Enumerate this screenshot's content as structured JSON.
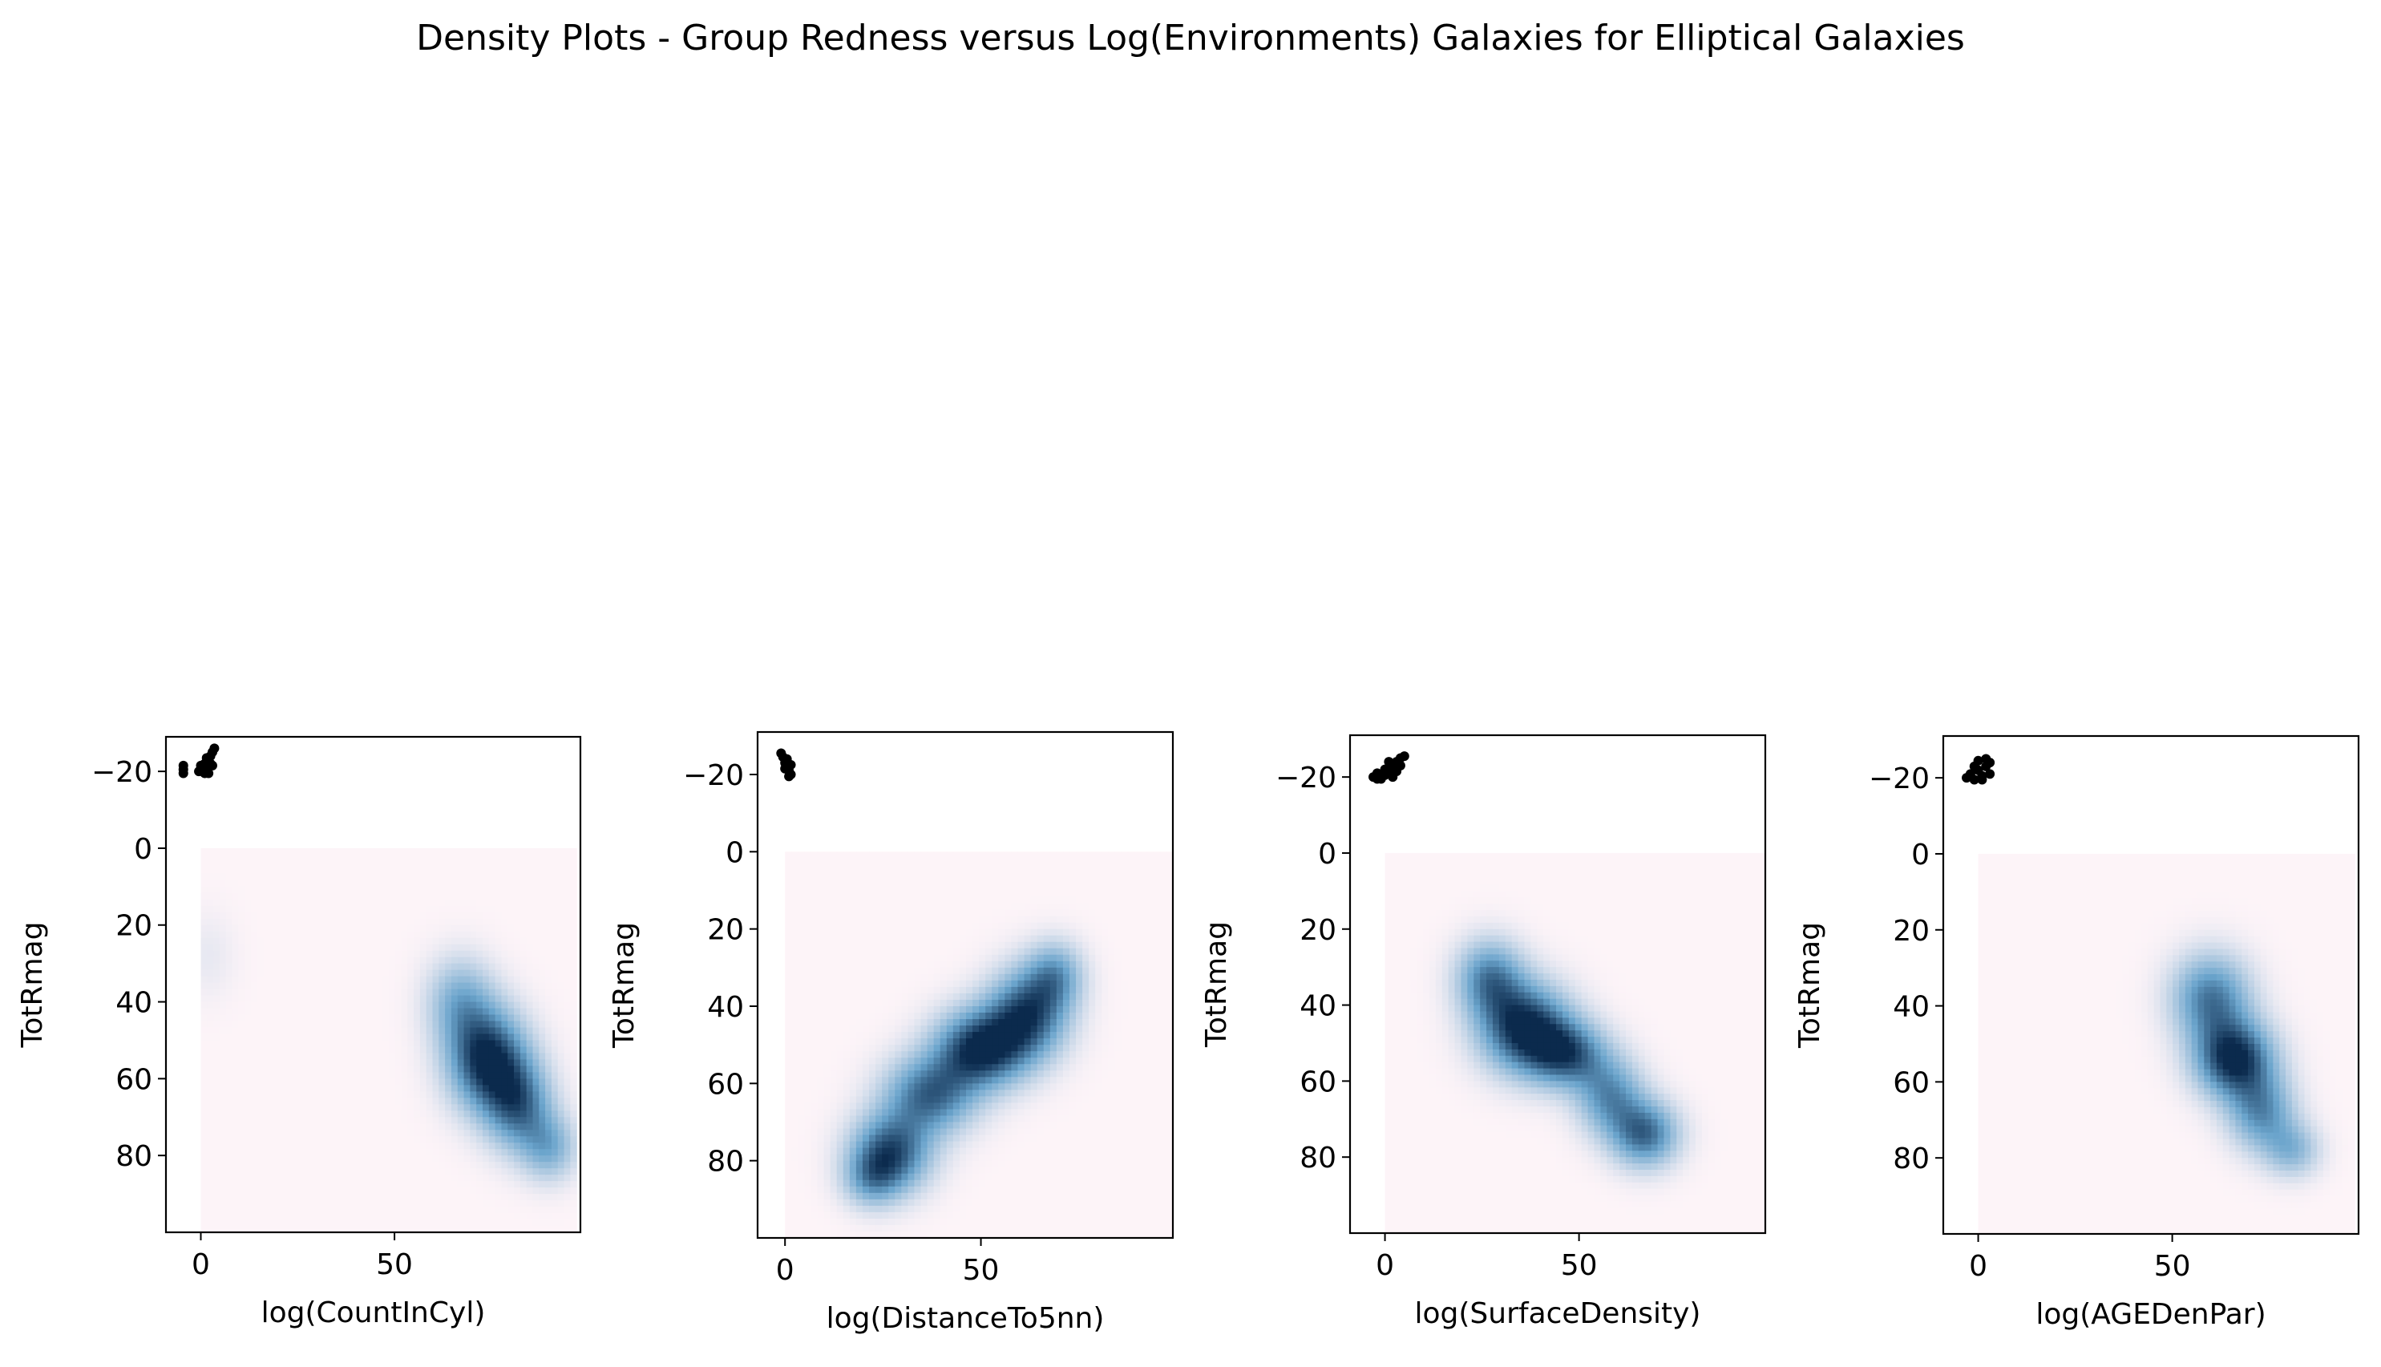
{
  "title": "Density Plots - Group Redness versus Log(Environments) Galaxies  for Elliptical Galaxies",
  "colors": {
    "density_low": "#fdf4f8",
    "density_mid": "#6aa4cc",
    "density_high": "#0b2a4d",
    "points": "#000000",
    "axes": "#000000"
  },
  "chart_data": [
    {
      "type": "heatmap",
      "xlabel": "log(CountInCyl)",
      "ylabel": "TotRmag",
      "xticks": [
        0,
        50
      ],
      "yticks": [
        -20,
        0,
        20,
        40,
        60,
        80
      ],
      "xlim": [
        -9,
        98
      ],
      "ylim": [
        100,
        -29
      ],
      "y_inverted": true,
      "density_extent": {
        "x": [
          0,
          97
        ],
        "y": [
          0,
          100
        ]
      },
      "density_blobs": [
        {
          "x": 67,
          "y": 40,
          "sx": 6,
          "sy": 8,
          "w": 0.45
        },
        {
          "x": 74,
          "y": 55,
          "sx": 7,
          "sy": 9,
          "w": 1.0
        },
        {
          "x": 82,
          "y": 67,
          "sx": 6,
          "sy": 8,
          "w": 0.7
        },
        {
          "x": 90,
          "y": 78,
          "sx": 5,
          "sy": 6,
          "w": 0.45
        },
        {
          "x": 2,
          "y": 28,
          "sx": 5,
          "sy": 8,
          "w": 0.08
        }
      ],
      "points": [
        {
          "x": -4.5,
          "y": -20.5
        },
        {
          "x": -4.5,
          "y": -21.5
        },
        {
          "x": -4.5,
          "y": -19.5
        },
        {
          "x": -0.5,
          "y": -20
        },
        {
          "x": 0.5,
          "y": -21
        },
        {
          "x": 1,
          "y": -22
        },
        {
          "x": 1.5,
          "y": -20.5
        },
        {
          "x": 2,
          "y": -23
        },
        {
          "x": 2.5,
          "y": -24
        },
        {
          "x": 3,
          "y": -21.5
        },
        {
          "x": 3,
          "y": -25
        },
        {
          "x": 3.5,
          "y": -26
        },
        {
          "x": 1,
          "y": -19.5
        },
        {
          "x": 2,
          "y": -19.5
        },
        {
          "x": 0,
          "y": -21.5
        },
        {
          "x": 2.5,
          "y": -22
        },
        {
          "x": 1.5,
          "y": -23.5
        }
      ]
    },
    {
      "type": "heatmap",
      "xlabel": "log(DistanceTo5nn)",
      "ylabel": "TotRmag",
      "xticks": [
        0,
        50
      ],
      "yticks": [
        -20,
        0,
        20,
        40,
        60,
        80
      ],
      "xlim": [
        -7,
        99
      ],
      "ylim": [
        100,
        -31
      ],
      "y_inverted": true,
      "density_extent": {
        "x": [
          0,
          99
        ],
        "y": [
          0,
          100
        ]
      },
      "density_blobs": [
        {
          "x": 27,
          "y": 78,
          "sx": 7,
          "sy": 7,
          "w": 0.85
        },
        {
          "x": 37,
          "y": 63,
          "sx": 8,
          "sy": 7,
          "w": 0.75
        },
        {
          "x": 50,
          "y": 51,
          "sx": 8,
          "sy": 7,
          "w": 1.0
        },
        {
          "x": 62,
          "y": 42,
          "sx": 7,
          "sy": 8,
          "w": 0.85
        },
        {
          "x": 69,
          "y": 32,
          "sx": 5,
          "sy": 6,
          "w": 0.5
        },
        {
          "x": 22,
          "y": 85,
          "sx": 5,
          "sy": 5,
          "w": 0.4
        }
      ],
      "points": [
        {
          "x": -1,
          "y": -25.5
        },
        {
          "x": -0.5,
          "y": -24.5
        },
        {
          "x": 0,
          "y": -23
        },
        {
          "x": 0.5,
          "y": -22
        },
        {
          "x": 1,
          "y": -21
        },
        {
          "x": 1.5,
          "y": -20
        },
        {
          "x": 1,
          "y": -19.5
        },
        {
          "x": 0,
          "y": -21.5
        },
        {
          "x": 0.5,
          "y": -24
        },
        {
          "x": 1.5,
          "y": -22.5
        }
      ]
    },
    {
      "type": "heatmap",
      "xlabel": "log(SurfaceDensity)",
      "ylabel": "TotRmag",
      "xticks": [
        0,
        50
      ],
      "yticks": [
        -20,
        0,
        20,
        40,
        60,
        80
      ],
      "xlim": [
        -9,
        98
      ],
      "ylim": [
        100,
        -31
      ],
      "y_inverted": true,
      "density_extent": {
        "x": [
          0,
          98
        ],
        "y": [
          0,
          100
        ]
      },
      "density_blobs": [
        {
          "x": 27,
          "y": 33,
          "sx": 6,
          "sy": 7,
          "w": 0.65
        },
        {
          "x": 36,
          "y": 46,
          "sx": 8,
          "sy": 8,
          "w": 1.0
        },
        {
          "x": 47,
          "y": 53,
          "sx": 7,
          "sy": 6,
          "w": 0.75
        },
        {
          "x": 58,
          "y": 64,
          "sx": 6,
          "sy": 7,
          "w": 0.6
        },
        {
          "x": 67,
          "y": 74,
          "sx": 6,
          "sy": 6,
          "w": 0.75
        }
      ],
      "points": [
        {
          "x": -3,
          "y": -20
        },
        {
          "x": -2,
          "y": -21
        },
        {
          "x": -1,
          "y": -19.5
        },
        {
          "x": 0,
          "y": -20.5
        },
        {
          "x": 1,
          "y": -22
        },
        {
          "x": 2,
          "y": -23
        },
        {
          "x": 3,
          "y": -24
        },
        {
          "x": 4,
          "y": -25
        },
        {
          "x": 5,
          "y": -25.5
        },
        {
          "x": 4,
          "y": -23
        },
        {
          "x": 2,
          "y": -20
        },
        {
          "x": 0,
          "y": -22
        },
        {
          "x": -2,
          "y": -19.5
        },
        {
          "x": 3,
          "y": -21.5
        },
        {
          "x": 1,
          "y": -24
        }
      ]
    },
    {
      "type": "heatmap",
      "xlabel": "log(AGEDenPar)",
      "ylabel": "TotRmag",
      "xticks": [
        0,
        50
      ],
      "yticks": [
        -20,
        0,
        20,
        40,
        60,
        80
      ],
      "xlim": [
        -9,
        98
      ],
      "ylim": [
        100,
        -31
      ],
      "y_inverted": true,
      "density_extent": {
        "x": [
          0,
          97
        ],
        "y": [
          0,
          100
        ]
      },
      "density_blobs": [
        {
          "x": 60,
          "y": 38,
          "sx": 7,
          "sy": 8,
          "w": 0.7
        },
        {
          "x": 66,
          "y": 54,
          "sx": 7,
          "sy": 7,
          "w": 1.0
        },
        {
          "x": 73,
          "y": 68,
          "sx": 6,
          "sy": 7,
          "w": 0.6
        },
        {
          "x": 81,
          "y": 78,
          "sx": 5,
          "sy": 5,
          "w": 0.4
        }
      ],
      "points": [
        {
          "x": -3,
          "y": -20
        },
        {
          "x": -2,
          "y": -21
        },
        {
          "x": -1,
          "y": -19.5
        },
        {
          "x": 0,
          "y": -22
        },
        {
          "x": 1,
          "y": -20.5
        },
        {
          "x": 2,
          "y": -23
        },
        {
          "x": 3,
          "y": -24
        },
        {
          "x": 2,
          "y": -25
        },
        {
          "x": 0,
          "y": -24.5
        },
        {
          "x": -1,
          "y": -23
        },
        {
          "x": 1,
          "y": -19.5
        },
        {
          "x": 3,
          "y": -21
        }
      ]
    }
  ]
}
